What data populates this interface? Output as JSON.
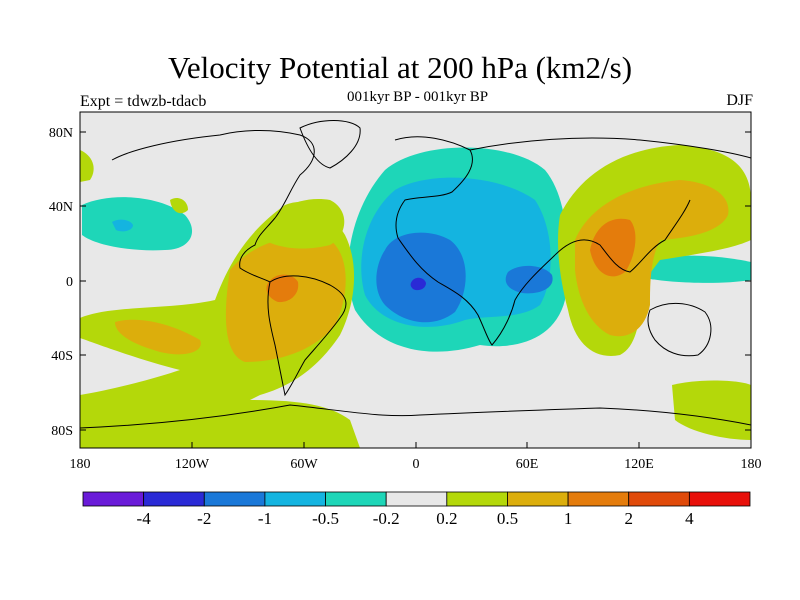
{
  "title": "Velocity Potential at 200 hPa (km2/s)",
  "subtitle": "001kyr BP - 001kyr BP",
  "left_label": "Expt = tdwzb-tdacb",
  "right_label": "DJF",
  "lat_ticks": [
    "80N",
    "40N",
    "0",
    "40S",
    "80S"
  ],
  "lon_ticks": [
    "180",
    "120W",
    "60W",
    "0",
    "60E",
    "120E",
    "180"
  ],
  "colorbar": {
    "colors": [
      "#6a1bd8",
      "#2a2ad6",
      "#1a78d8",
      "#14b4e0",
      "#1ed6b8",
      "#e8e8e8",
      "#b4d80a",
      "#dcae0c",
      "#e47c0c",
      "#e04a0a",
      "#e8100a"
    ],
    "labels": [
      "-4",
      "-2",
      "-1",
      "-0.5",
      "-0.2",
      "0.2",
      "0.5",
      "1",
      "2",
      "4"
    ]
  },
  "colors": {
    "land_line": "#000000",
    "neutral": "#e8e8e8"
  }
}
